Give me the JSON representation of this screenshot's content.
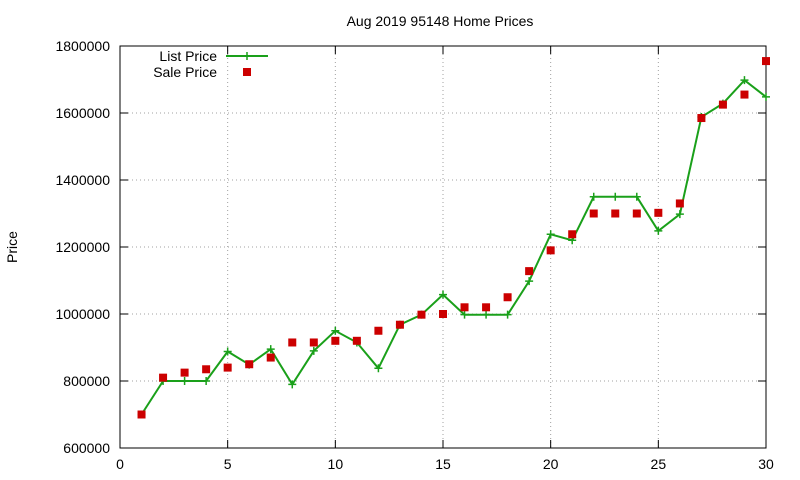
{
  "chart_data": {
    "type": "line",
    "title": "Aug 2019 95148 Home Prices",
    "xlabel": "",
    "ylabel": "Price",
    "xlim": [
      0,
      30
    ],
    "ylim": [
      600000,
      1800000
    ],
    "x_ticks": [
      0,
      5,
      10,
      15,
      20,
      25,
      30
    ],
    "y_ticks": [
      600000,
      800000,
      1000000,
      1200000,
      1400000,
      1600000,
      1800000
    ],
    "grid": true,
    "legend_position": "top-left",
    "series": [
      {
        "name": "List Price",
        "style": "line-with-plus-markers",
        "color": "#1aa01a",
        "points": [
          [
            1,
            700000
          ],
          [
            2,
            800000
          ],
          [
            3,
            800000
          ],
          [
            4,
            800000
          ],
          [
            5,
            888000
          ],
          [
            6,
            849000
          ],
          [
            7,
            895000
          ],
          [
            8,
            790000
          ],
          [
            9,
            890000
          ],
          [
            10,
            950000
          ],
          [
            11,
            915000
          ],
          [
            12,
            838000
          ],
          [
            13,
            968000
          ],
          [
            14,
            998000
          ],
          [
            15,
            1058000
          ],
          [
            16,
            998000
          ],
          [
            17,
            998000
          ],
          [
            18,
            998000
          ],
          [
            19,
            1098000
          ],
          [
            20,
            1238000
          ],
          [
            21,
            1220000
          ],
          [
            22,
            1350000
          ],
          [
            23,
            1350000
          ],
          [
            24,
            1350000
          ],
          [
            25,
            1248000
          ],
          [
            26,
            1298000
          ],
          [
            27,
            1588000
          ],
          [
            28,
            1628000
          ],
          [
            29,
            1698000
          ],
          [
            30,
            1648000
          ]
        ]
      },
      {
        "name": "Sale Price",
        "style": "square-markers",
        "color": "#cc0000",
        "points": [
          [
            1,
            700000
          ],
          [
            2,
            810000
          ],
          [
            3,
            825000
          ],
          [
            4,
            835000
          ],
          [
            5,
            840000
          ],
          [
            6,
            850000
          ],
          [
            7,
            870000
          ],
          [
            8,
            915000
          ],
          [
            9,
            915000
          ],
          [
            10,
            920000
          ],
          [
            11,
            920000
          ],
          [
            12,
            950000
          ],
          [
            13,
            968000
          ],
          [
            14,
            998000
          ],
          [
            15,
            1000000
          ],
          [
            16,
            1020000
          ],
          [
            17,
            1020000
          ],
          [
            18,
            1050000
          ],
          [
            19,
            1128000
          ],
          [
            20,
            1190000
          ],
          [
            21,
            1238000
          ],
          [
            22,
            1300000
          ],
          [
            23,
            1300000
          ],
          [
            24,
            1300000
          ],
          [
            25,
            1302000
          ],
          [
            26,
            1330000
          ],
          [
            27,
            1585000
          ],
          [
            28,
            1625000
          ],
          [
            29,
            1655000
          ],
          [
            30,
            1755000
          ]
        ]
      }
    ]
  }
}
